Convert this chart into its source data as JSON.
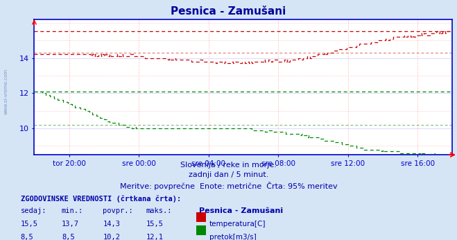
{
  "title": "Pesnica - Zamušani",
  "title_color": "#000099",
  "bg_color": "#d5e5f5",
  "plot_bg_color": "#ffffff",
  "axis_color": "#0000cc",
  "text_color": "#0000aa",
  "subtitle_lines": [
    "Slovenija / reke in morje.",
    "zadnji dan / 5 minut.",
    "Meritve: povprečne  Enote: metrične  Črta: 95% meritev"
  ],
  "legend_header": "ZGODOVINSKE VREDNOSTI (črtkana črta):",
  "legend_cols": [
    "sedaj:",
    "min.:",
    "povpr.:",
    "maks.:"
  ],
  "legend_rows": [
    {
      "values": [
        "15,5",
        "13,7",
        "14,3",
        "15,5"
      ],
      "label": "temperatura[C]",
      "color": "#cc0000"
    },
    {
      "values": [
        "8,5",
        "8,5",
        "10,2",
        "12,1"
      ],
      "label": "pretok[m3/s]",
      "color": "#008800"
    }
  ],
  "legend_station": "Pesnica - Zamušani",
  "temp_color": "#cc0000",
  "flow_color": "#008800",
  "xlim": [
    0,
    24
  ],
  "ylim": [
    8.5,
    16.2
  ],
  "yticks": [
    10,
    12,
    14
  ],
  "xlabel_ticks": [
    "tor 20:00",
    "sre 00:00",
    "sre 04:00",
    "sre 08:00",
    "sre 12:00",
    "sre 16:00"
  ],
  "x_tick_pos": [
    2,
    6,
    10,
    14,
    18,
    22
  ],
  "temp_hist_max": 15.5,
  "temp_hist_avg": 14.3,
  "flow_hist_max": 12.1,
  "flow_hist_avg": 10.2
}
